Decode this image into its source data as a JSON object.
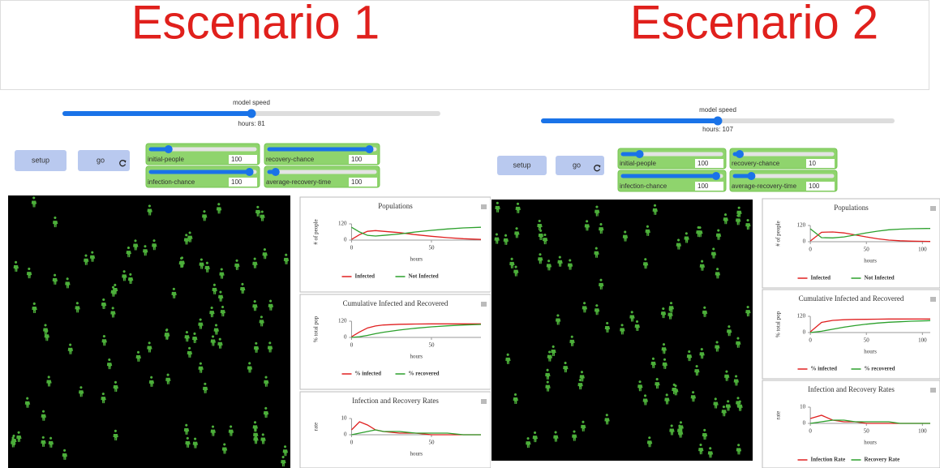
{
  "scenarios": [
    {
      "title": "Escenario 1",
      "speed_label": "model speed",
      "hours": "hours: 81",
      "buttons": [
        "setup",
        "go"
      ],
      "sliders": [
        {
          "label": "initial-people",
          "value": 100
        },
        {
          "label": "recovery-chance",
          "value": 100
        },
        {
          "label": "infection-chance",
          "value": 100
        },
        {
          "label": "average-recovery-time",
          "value": 100
        }
      ],
      "charts": [
        {
          "type": "line",
          "title": "Populations",
          "y_label": "# of people",
          "x_label": "hours",
          "xlim": [
            0,
            81
          ],
          "ylim": [
            0,
            120
          ],
          "xticks": [
            0,
            50
          ],
          "yticks": [
            0,
            120
          ],
          "x": [
            0,
            5,
            10,
            15,
            20,
            30,
            40,
            50,
            60,
            70,
            81
          ],
          "series": [
            {
              "name": "Infected",
              "color": "#e02020",
              "values": [
                5,
                40,
                65,
                70,
                65,
                55,
                40,
                28,
                18,
                10,
                5
              ]
            },
            {
              "name": "Not Infected",
              "color": "#2ca02c",
              "values": [
                95,
                60,
                35,
                30,
                35,
                45,
                60,
                72,
                82,
                90,
                95
              ]
            }
          ]
        },
        {
          "type": "line",
          "title": "Cumulative Infected and Recovered",
          "y_label": "% total pop",
          "x_label": "hours",
          "xlim": [
            0,
            81
          ],
          "ylim": [
            0,
            120
          ],
          "xticks": [
            0,
            50
          ],
          "yticks": [
            0,
            120
          ],
          "x": [
            0,
            5,
            10,
            15,
            20,
            30,
            40,
            50,
            60,
            70,
            81
          ],
          "series": [
            {
              "name": "% infected",
              "color": "#e02020",
              "values": [
                5,
                40,
                70,
                85,
                92,
                97,
                99,
                100,
                100,
                100,
                100
              ]
            },
            {
              "name": "% recovered",
              "color": "#2ca02c",
              "values": [
                0,
                5,
                15,
                28,
                38,
                55,
                68,
                78,
                86,
                92,
                96
              ]
            }
          ]
        },
        {
          "type": "line",
          "title": "Infection and Recovery Rates",
          "y_label": "rate",
          "x_label": "hours",
          "xlim": [
            0,
            81
          ],
          "ylim": [
            0,
            10
          ],
          "xticks": [
            0,
            50
          ],
          "yticks": [
            0,
            10
          ],
          "x": [
            0,
            5,
            10,
            15,
            20,
            30,
            40,
            50,
            60,
            70,
            81
          ],
          "series": [
            {
              "color": "#e02020",
              "values": [
                3,
                8,
                6,
                3,
                2,
                1,
                1,
                0,
                0,
                0,
                0
              ]
            },
            {
              "color": "#2ca02c",
              "values": [
                0,
                1,
                2,
                3,
                2,
                2,
                1,
                1,
                1,
                0,
                0
              ]
            }
          ]
        }
      ]
    },
    {
      "title": "Escenario 2",
      "speed_label": "model speed",
      "hours": "hours: 107",
      "buttons": [
        "setup",
        "go"
      ],
      "sliders": [
        {
          "label": "initial-people",
          "value": 100
        },
        {
          "label": "recovery-chance",
          "value": 10
        },
        {
          "label": "infection-chance",
          "value": 100
        },
        {
          "label": "average-recovery-time",
          "value": 100
        }
      ],
      "charts": [
        {
          "type": "line",
          "title": "Populations",
          "y_label": "# of people",
          "x_label": "hours",
          "xlim": [
            0,
            107
          ],
          "ylim": [
            0,
            120
          ],
          "xticks": [
            0,
            50,
            100
          ],
          "yticks": [
            0,
            120
          ],
          "x": [
            0,
            10,
            20,
            30,
            40,
            50,
            60,
            70,
            80,
            90,
            107
          ],
          "series": [
            {
              "name": "Infected",
              "color": "#e02020",
              "values": [
                5,
                70,
                72,
                65,
                50,
                35,
                22,
                12,
                7,
                4,
                2
              ]
            },
            {
              "name": "Not Infected",
              "color": "#2ca02c",
              "values": [
                95,
                30,
                28,
                35,
                50,
                65,
                78,
                88,
                93,
                96,
                98
              ]
            }
          ]
        },
        {
          "type": "line",
          "title": "Cumulative Infected and Recovered",
          "y_label": "% total pop",
          "x_label": "hours",
          "xlim": [
            0,
            107
          ],
          "ylim": [
            0,
            120
          ],
          "xticks": [
            0,
            50,
            100
          ],
          "yticks": [
            0,
            120
          ],
          "x": [
            0,
            10,
            20,
            30,
            40,
            50,
            60,
            70,
            80,
            90,
            107
          ],
          "series": [
            {
              "name": "% infected",
              "color": "#e02020",
              "values": [
                5,
                75,
                90,
                95,
                97,
                98,
                99,
                100,
                100,
                100,
                100
              ]
            },
            {
              "name": "% recovered",
              "color": "#2ca02c",
              "values": [
                0,
                10,
                25,
                40,
                52,
                62,
                70,
                76,
                80,
                84,
                88
              ]
            }
          ]
        },
        {
          "type": "line",
          "title": "Infection and Recovery Rates",
          "y_label": "rate",
          "x_label": "hours",
          "xlim": [
            0,
            107
          ],
          "ylim": [
            0,
            10
          ],
          "xticks": [
            0,
            50,
            100
          ],
          "yticks": [
            0,
            10
          ],
          "x": [
            0,
            10,
            20,
            30,
            40,
            50,
            60,
            70,
            80,
            90,
            107
          ],
          "series": [
            {
              "name": "Infection Rate",
              "color": "#e02020",
              "values": [
                3,
                5,
                2,
                1,
                1,
                0,
                0,
                0,
                0,
                0,
                0
              ]
            },
            {
              "name": "Recovery Rate",
              "color": "#2ca02c",
              "values": [
                0,
                1,
                2,
                2,
                1,
                1,
                1,
                1,
                0,
                0,
                0
              ]
            }
          ]
        }
      ]
    }
  ]
}
